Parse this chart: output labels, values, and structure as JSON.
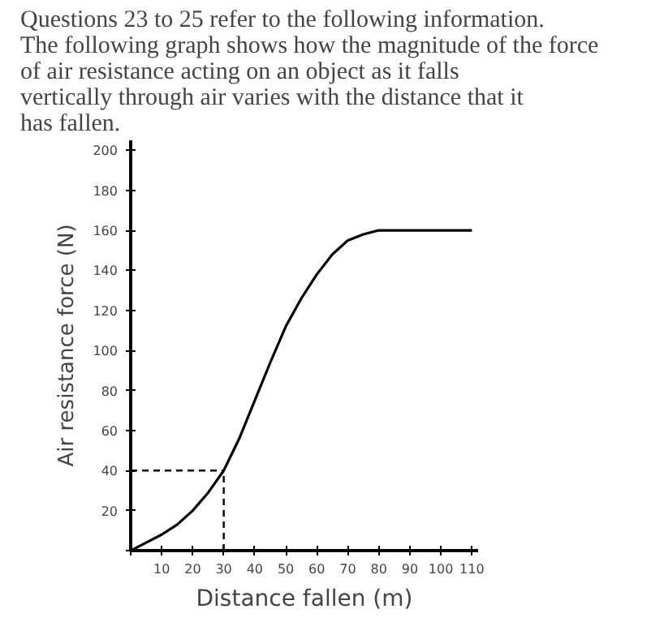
{
  "chart_data": {
    "type": "line",
    "title": "Questions 23 to 25 refer to the following information. The following graph shows how the magnitude of the force of air resistance acting on an object as it falls vertically through air varies with the distance that it has fallen.",
    "xlabel": "Distance fallen (m)",
    "ylabel": "Air resistance force (N)",
    "x": [
      0,
      5,
      10,
      15,
      20,
      25,
      30,
      35,
      40,
      45,
      50,
      55,
      60,
      65,
      70,
      75,
      80,
      90,
      100,
      110
    ],
    "series": [
      {
        "color": "#000000",
        "values": [
          0,
          4,
          8,
          13,
          20,
          29,
          40,
          56,
          75,
          94,
          112,
          126,
          138,
          148,
          155,
          158,
          160,
          160,
          160,
          160
        ]
      }
    ],
    "xlim": [
      0,
      112
    ],
    "ylim": [
      0,
      205
    ],
    "xticks": [
      {
        "value": 0,
        "label": null
      },
      10,
      20,
      30,
      40,
      50,
      60,
      70,
      80,
      90,
      100,
      110
    ],
    "yticks": [
      {
        "value": 0,
        "label": null
      },
      20,
      40,
      60,
      80,
      100,
      120,
      140,
      160,
      180,
      200
    ],
    "ref_lines": [
      {
        "axis": "x",
        "value": 30,
        "line_style": "dashed"
      },
      {
        "axis": "y",
        "value": 40,
        "line_style": "dashed"
      }
    ],
    "grid": false,
    "marker": "none",
    "line_style": "solid"
  }
}
